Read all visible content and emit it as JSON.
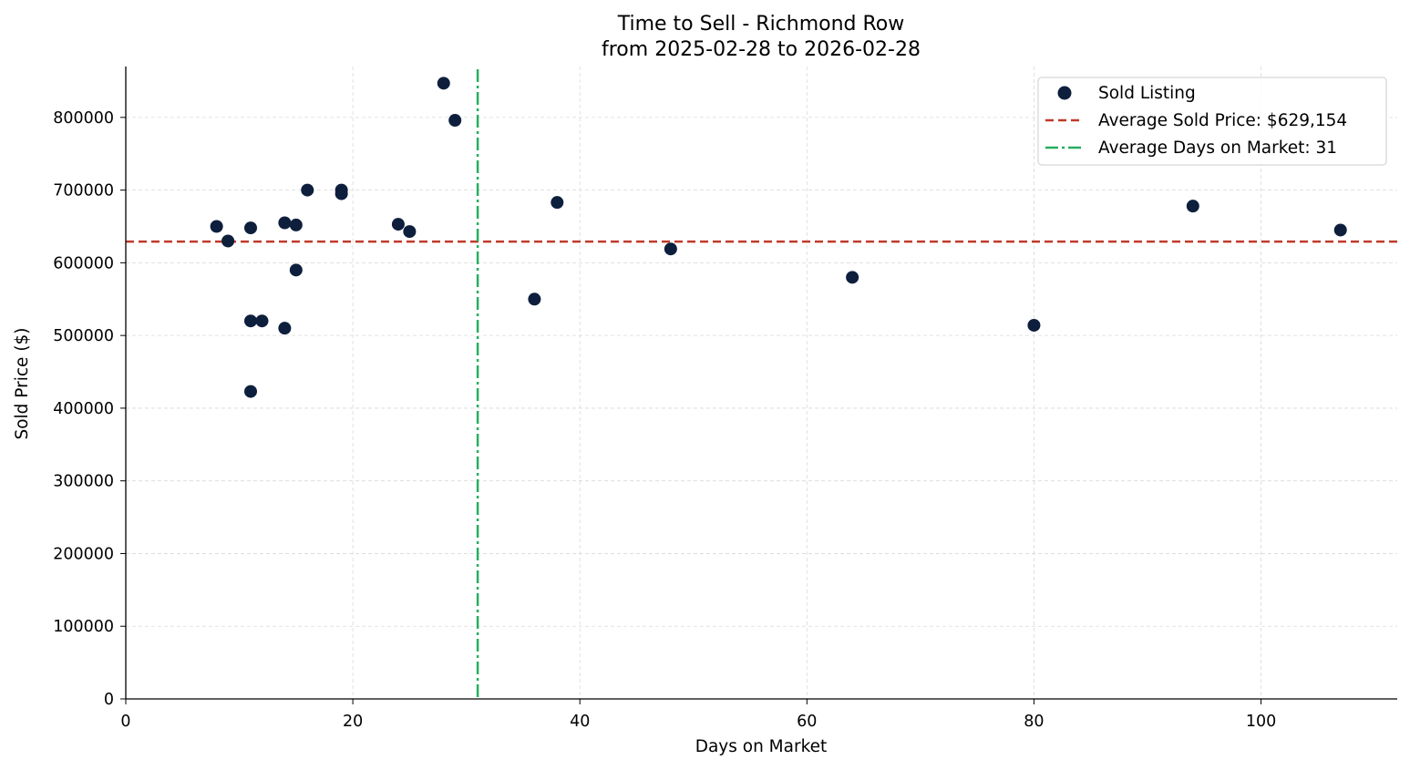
{
  "chart_data": {
    "type": "scatter",
    "title": "Time to Sell - Richmond Row",
    "subtitle": "from 2025-02-28 to 2026-02-28",
    "xlabel": "Days on Market",
    "ylabel": "Sold Price ($)",
    "xlim": [
      0,
      112
    ],
    "ylim": [
      0,
      870000
    ],
    "xticks": [
      0,
      20,
      40,
      60,
      80,
      100
    ],
    "yticks": [
      0,
      100000,
      200000,
      300000,
      400000,
      500000,
      600000,
      700000,
      800000
    ],
    "xtick_labels": [
      "0",
      "20",
      "40",
      "60",
      "80",
      "100"
    ],
    "ytick_labels": [
      "0",
      "100000",
      "200000",
      "300000",
      "400000",
      "500000",
      "600000",
      "700000",
      "800000"
    ],
    "grid": true,
    "legend_position": "top-right",
    "series": [
      {
        "name": "Sold Listing",
        "color": "#0d1f3c",
        "points": [
          {
            "x": 8,
            "y": 650000
          },
          {
            "x": 9,
            "y": 630000
          },
          {
            "x": 11,
            "y": 648000
          },
          {
            "x": 11,
            "y": 520000
          },
          {
            "x": 11,
            "y": 423000
          },
          {
            "x": 12,
            "y": 520000
          },
          {
            "x": 14,
            "y": 655000
          },
          {
            "x": 14,
            "y": 510000
          },
          {
            "x": 15,
            "y": 652000
          },
          {
            "x": 15,
            "y": 590000
          },
          {
            "x": 16,
            "y": 700000
          },
          {
            "x": 19,
            "y": 700000
          },
          {
            "x": 19,
            "y": 695000
          },
          {
            "x": 24,
            "y": 653000
          },
          {
            "x": 25,
            "y": 643000
          },
          {
            "x": 28,
            "y": 847000
          },
          {
            "x": 29,
            "y": 796000
          },
          {
            "x": 36,
            "y": 550000
          },
          {
            "x": 38,
            "y": 683000
          },
          {
            "x": 48,
            "y": 619000
          },
          {
            "x": 64,
            "y": 580000
          },
          {
            "x": 80,
            "y": 514000
          },
          {
            "x": 94,
            "y": 678000
          },
          {
            "x": 107,
            "y": 645000
          }
        ]
      }
    ],
    "reference_lines": [
      {
        "name": "Average Sold Price: $629,154",
        "orientation": "horizontal",
        "value": 629154,
        "style": "dashed",
        "color": "#c0392b"
      },
      {
        "name": "Average Days on Market: 31",
        "orientation": "vertical",
        "value": 31,
        "style": "dashdot",
        "color": "#27ae60"
      }
    ]
  }
}
